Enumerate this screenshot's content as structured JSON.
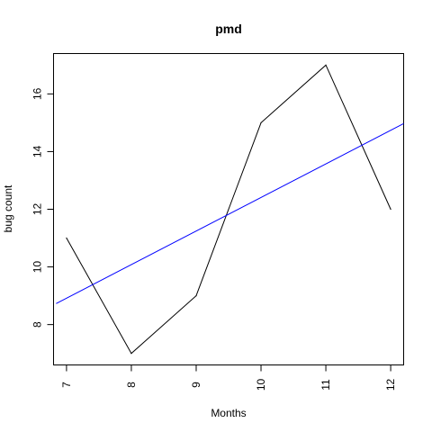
{
  "chart_data": {
    "type": "line",
    "title": "pmd",
    "xlabel": "Months",
    "ylabel": "bug count",
    "x": [
      7,
      8,
      9,
      10,
      11,
      12
    ],
    "series": [
      {
        "values": [
          11,
          7,
          9,
          15,
          17,
          12
        ],
        "color": "#000000"
      }
    ],
    "trend_line": {
      "x": [
        6.84,
        12.2
      ],
      "y": [
        8.73,
        14.97
      ],
      "color": "#0000ff"
    },
    "xticks": [
      7,
      8,
      9,
      10,
      11,
      12
    ],
    "yticks": [
      8,
      10,
      12,
      14,
      16
    ],
    "xlim": [
      6.8,
      12.2
    ],
    "ylim": [
      6.6,
      17.4
    ],
    "grid": false,
    "legend": "none"
  }
}
